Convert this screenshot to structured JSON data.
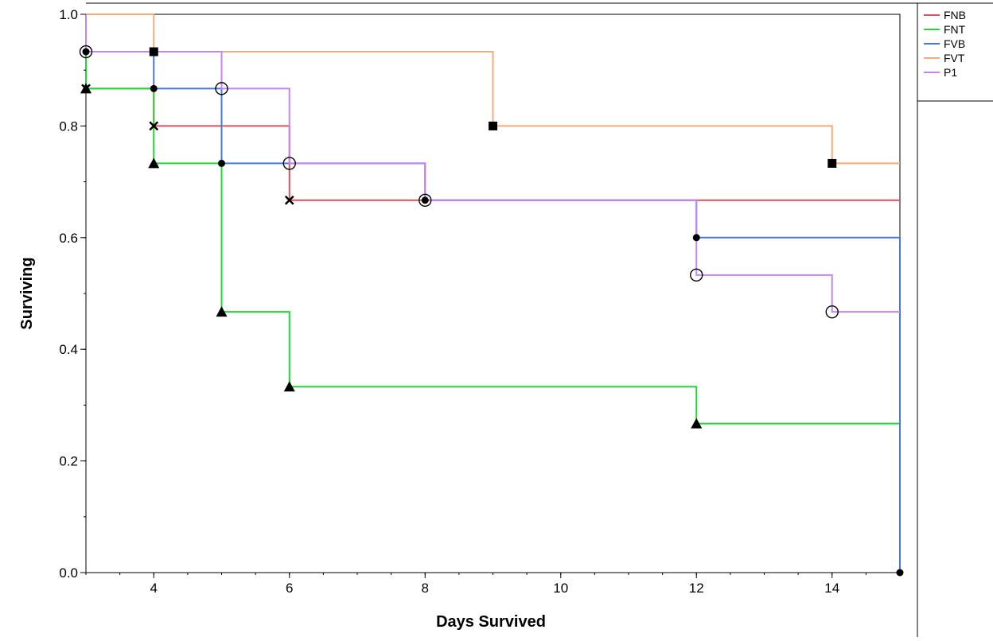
{
  "chart_data": {
    "type": "line",
    "subtype": "step",
    "title": "",
    "xlabel": "Days Survived",
    "ylabel": "Surviving",
    "xlim": [
      3,
      15
    ],
    "ylim": [
      0,
      1
    ],
    "x_ticks": [
      "4",
      "6",
      "8",
      "10",
      "12",
      "14"
    ],
    "y_ticks": [
      "0.0",
      "0.2",
      "0.4",
      "0.6",
      "0.8",
      "1.0"
    ],
    "grid": false,
    "legend_position": "right",
    "series": [
      {
        "name": "FNB",
        "color": "#d9505f",
        "marker": "x",
        "x": [
          3,
          4,
          6
        ],
        "y": [
          0.867,
          0.8,
          0.667
        ]
      },
      {
        "name": "FNT",
        "color": "#22d633",
        "marker": "triangle",
        "x": [
          3,
          4,
          5,
          6,
          12
        ],
        "y": [
          0.867,
          0.733,
          0.467,
          0.333,
          0.267
        ]
      },
      {
        "name": "FVB",
        "color": "#4a78d8",
        "marker": "dot",
        "x": [
          3,
          4,
          5,
          8,
          12,
          15
        ],
        "y": [
          0.933,
          0.867,
          0.733,
          0.667,
          0.6,
          0
        ]
      },
      {
        "name": "FVT",
        "color": "#f5aa78",
        "marker": "square",
        "x": [
          4,
          9,
          14
        ],
        "y": [
          0.933,
          0.8,
          0.733
        ]
      },
      {
        "name": "P1",
        "color": "#c386f0",
        "marker": "circle",
        "x": [
          3,
          5,
          6,
          8,
          12,
          14
        ],
        "y": [
          0.933,
          0.867,
          0.733,
          0.667,
          0.533,
          0.467
        ]
      }
    ]
  }
}
